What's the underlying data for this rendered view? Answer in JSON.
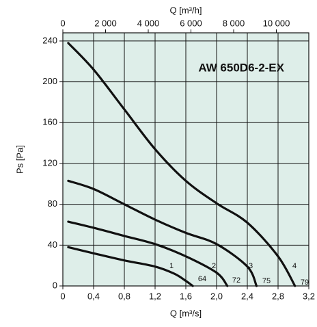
{
  "chart_data": {
    "type": "line",
    "title": "AW 650D6-2-EX",
    "x_label": "Q [m³/s]",
    "x2_label": "Q [m³/h]",
    "y_label": "Ps [Pa]",
    "xlim": [
      0,
      3.2
    ],
    "xticks": [
      0,
      {
        "value": 0.4,
        "label": "0,4"
      },
      {
        "value": 0.8,
        "label": "0,8"
      },
      {
        "value": 1.2,
        "label": "1,2"
      },
      {
        "value": 1.6,
        "label": "1,6"
      },
      {
        "value": 2.0,
        "label": "2,0"
      },
      {
        "value": 2.4,
        "label": "2,4"
      },
      {
        "value": 2.8,
        "label": "2,8"
      },
      {
        "value": 3.2,
        "label": "3,2"
      }
    ],
    "x2lim": [
      0,
      11520
    ],
    "x2ticks": [
      0,
      {
        "value": 2000,
        "label": "2 000"
      },
      {
        "value": 4000,
        "label": "4 000"
      },
      {
        "value": 6000,
        "label": "6 000"
      },
      {
        "value": 8000,
        "label": "8 000"
      },
      {
        "value": 10000,
        "label": "10 000"
      }
    ],
    "ylim": [
      0,
      248
    ],
    "yticks": [
      0,
      40,
      80,
      120,
      160,
      200,
      240
    ],
    "grid": true,
    "series": [
      {
        "name": "1",
        "efficiency": "64",
        "color": "#111111",
        "x": [
          0.07,
          0.4,
          0.8,
          1.2,
          1.45,
          1.6,
          1.69
        ],
        "values": [
          38,
          32,
          25,
          19,
          12,
          5,
          0
        ]
      },
      {
        "name": "2",
        "efficiency": "72",
        "color": "#111111",
        "x": [
          0.07,
          0.4,
          0.8,
          1.2,
          1.6,
          2.0,
          2.14
        ],
        "values": [
          63,
          57,
          49,
          41,
          29,
          13,
          0
        ]
      },
      {
        "name": "3",
        "efficiency": "75",
        "color": "#111111",
        "x": [
          0.07,
          0.4,
          0.8,
          1.2,
          1.6,
          2.0,
          2.4,
          2.52
        ],
        "values": [
          103,
          95,
          80,
          65,
          52,
          41,
          19,
          0
        ]
      },
      {
        "name": "4",
        "efficiency": "79",
        "color": "#111111",
        "x": [
          0.07,
          0.4,
          0.8,
          1.2,
          1.6,
          2.0,
          2.4,
          2.8,
          3.02
        ],
        "values": [
          238,
          212,
          173,
          134,
          103,
          81,
          62,
          29,
          0
        ]
      }
    ]
  }
}
